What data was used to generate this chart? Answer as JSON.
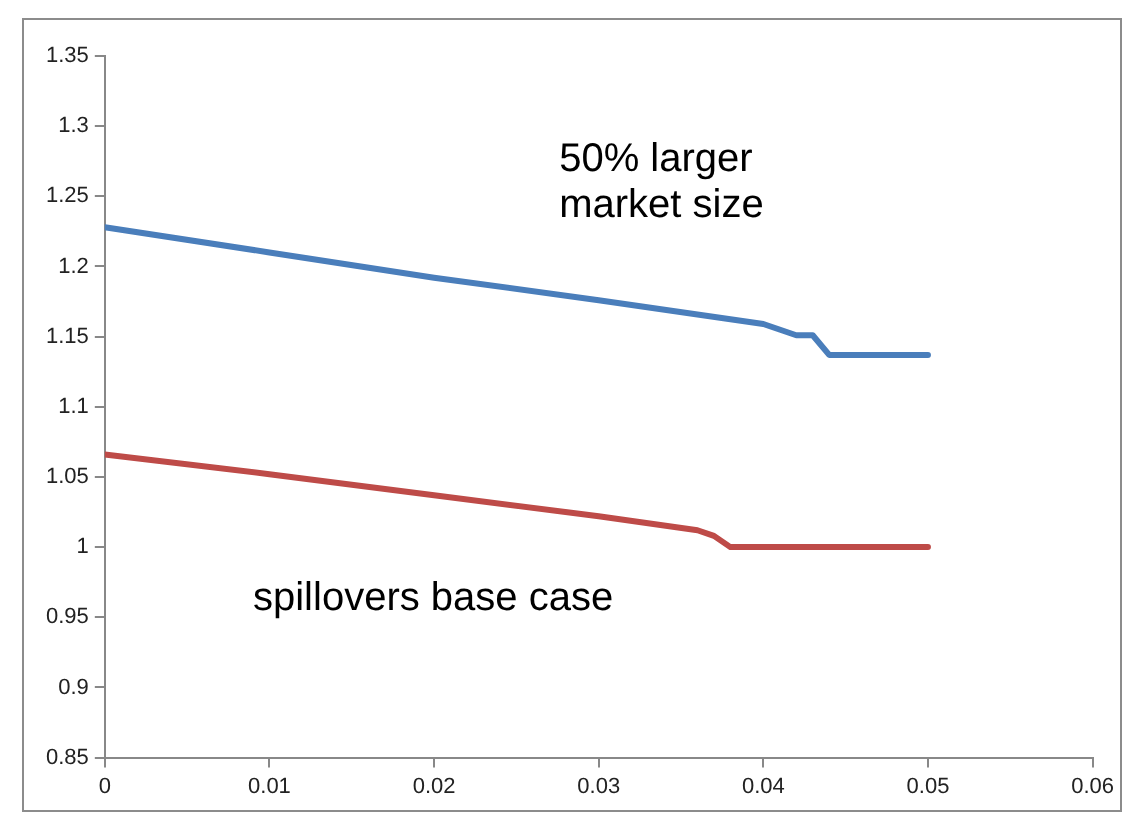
{
  "chart_data": {
    "type": "line",
    "xlim": [
      0,
      0.06
    ],
    "xticks": [
      0,
      0.01,
      0.02,
      0.03,
      0.04,
      0.05,
      0.06
    ],
    "ylim": [
      0.85,
      1.35
    ],
    "yticks": [
      0.85,
      0.9,
      0.95,
      1,
      1.05,
      1.1,
      1.15,
      1.2,
      1.25,
      1.3,
      1.35
    ],
    "grid": false,
    "legend": false,
    "marker": "none",
    "line_style": "solid",
    "series": [
      {
        "name": "50% larger market size",
        "color": "#4a7ebb",
        "x": [
          0,
          0.01,
          0.02,
          0.03,
          0.04,
          0.042,
          0.043,
          0.044,
          0.046,
          0.05
        ],
        "values": [
          1.228,
          1.21,
          1.192,
          1.176,
          1.159,
          1.151,
          1.151,
          1.137,
          1.137,
          1.137
        ]
      },
      {
        "name": "spillovers base case",
        "color": "#be4b48",
        "x": [
          0,
          0.01,
          0.02,
          0.03,
          0.036,
          0.037,
          0.038,
          0.05
        ],
        "values": [
          1.066,
          1.052,
          1.037,
          1.022,
          1.012,
          1.008,
          1,
          1
        ]
      }
    ]
  }
}
